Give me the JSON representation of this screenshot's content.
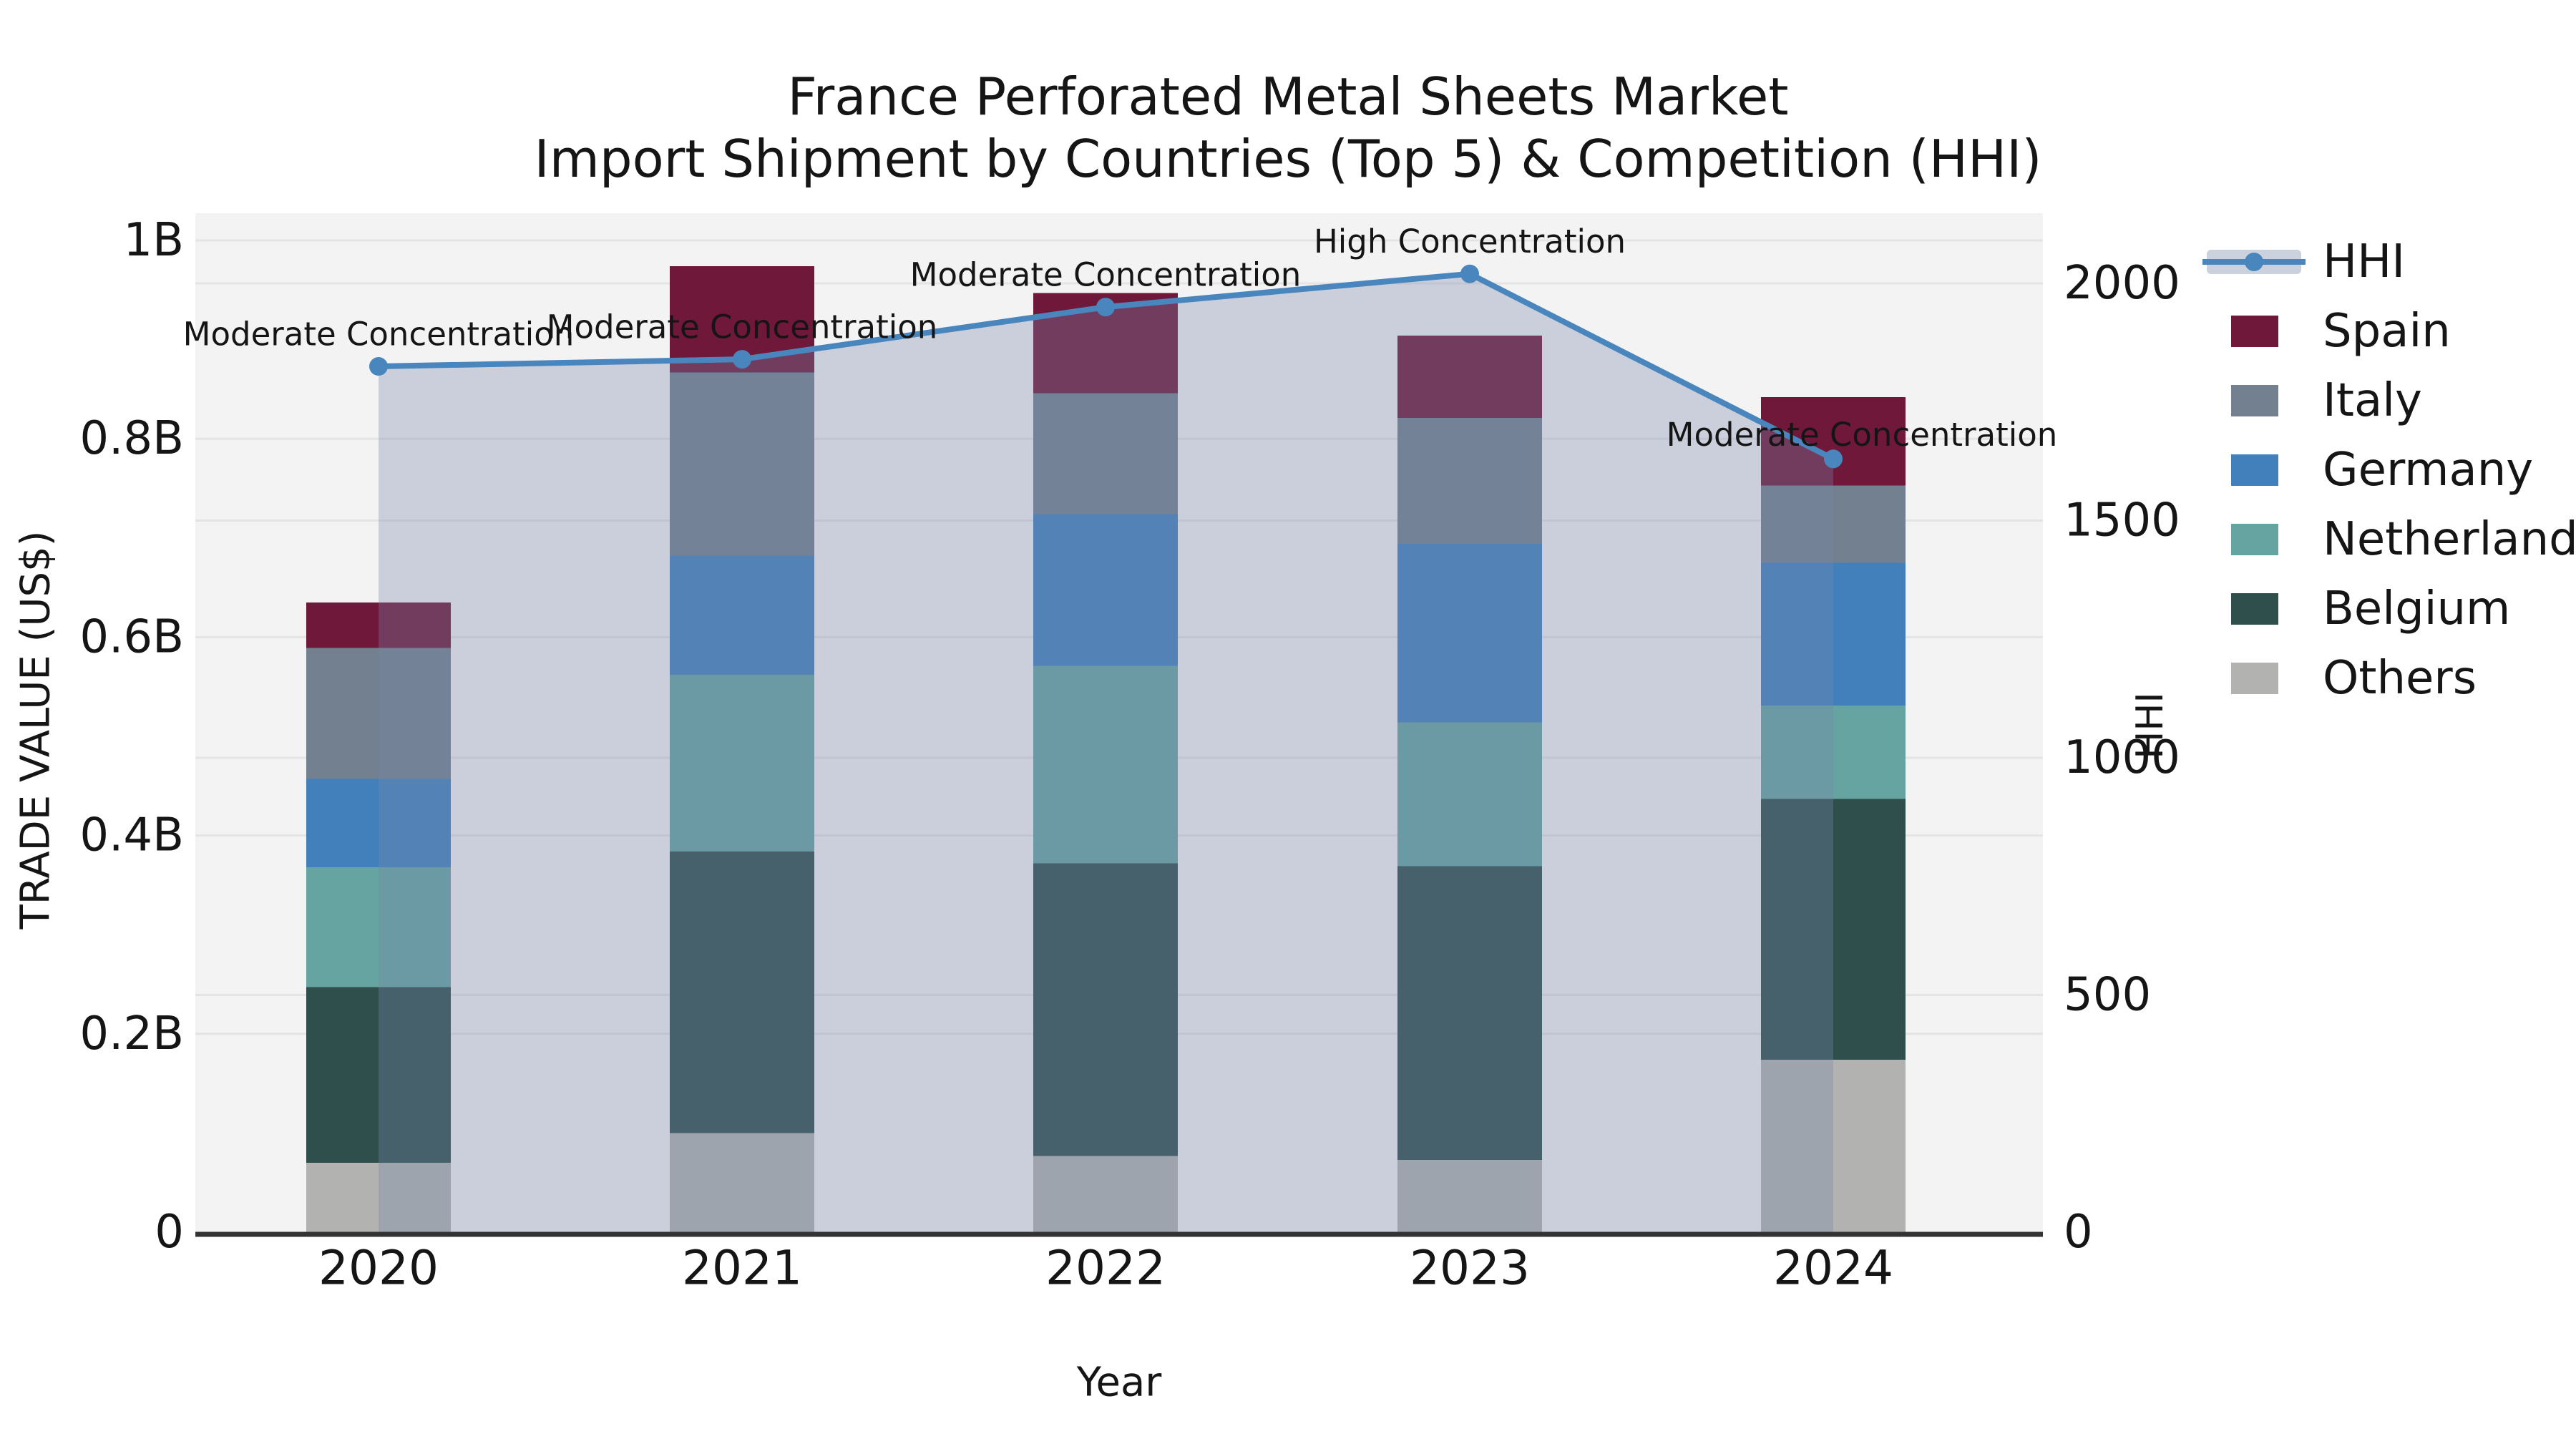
{
  "title": {
    "line1": "France Perforated Metal Sheets Market",
    "line2": "Import Shipment by Countries (Top 5) & Competition (HHI)"
  },
  "axes": {
    "y_left_label": "TRADE VALUE (US$)",
    "y_right_label": "HHI",
    "x_label": "Year",
    "y_left_ticks": {
      "labels": [
        "0",
        "0.2B",
        "0.4B",
        "0.6B",
        "0.8B",
        "1B"
      ],
      "values": [
        0,
        0.2,
        0.4,
        0.6,
        0.8,
        1.0
      ]
    },
    "y_right_ticks": {
      "labels": [
        "0",
        "500",
        "1000",
        "1500",
        "2000"
      ],
      "values": [
        0,
        500,
        1000,
        1500,
        2000
      ]
    }
  },
  "legend": {
    "items": [
      {
        "label": "HHI",
        "type": "line"
      },
      {
        "label": "Spain",
        "type": "patch"
      },
      {
        "label": "Italy",
        "type": "patch"
      },
      {
        "label": "Germany",
        "type": "patch"
      },
      {
        "label": "Netherlands",
        "type": "patch"
      },
      {
        "label": "Belgium",
        "type": "patch"
      },
      {
        "label": "Others",
        "type": "patch"
      }
    ]
  },
  "colors": {
    "HHI": "#4A86BE",
    "Spain": "#6F1839",
    "Italy": "#73808F",
    "Germany": "#4280BC",
    "Netherlands": "#66A4A2",
    "Belgium": "#2F4F4C",
    "Others": "#B2B3B1",
    "area_fill": "rgba(117,135,169,0.33)",
    "legend_band": "#CBD2DD",
    "plot_bg": "#F3F3F3",
    "gridline": "#E4E4E4",
    "axis_line": "#333333",
    "text": "#151515"
  },
  "chart_data": {
    "type": "bar",
    "subtype": "stacked-bars-with-line-overlay-and-area-fill",
    "categories": [
      "2020",
      "2021",
      "2022",
      "2023",
      "2024"
    ],
    "unit_left": "billion US$",
    "unit_right": "HHI index",
    "ylim_left": [
      0,
      1.0
    ],
    "ylim_right": [
      0,
      2000
    ],
    "grid": true,
    "legend_position": "right",
    "series": [
      {
        "name": "Spain",
        "axis": "left",
        "values": [
          0.046,
          0.107,
          0.101,
          0.083,
          0.089
        ]
      },
      {
        "name": "Italy",
        "axis": "left",
        "values": [
          0.132,
          0.185,
          0.122,
          0.127,
          0.078
        ]
      },
      {
        "name": "Germany",
        "axis": "left",
        "values": [
          0.089,
          0.12,
          0.153,
          0.18,
          0.144
        ]
      },
      {
        "name": "Netherlands",
        "axis": "left",
        "values": [
          0.121,
          0.178,
          0.199,
          0.145,
          0.094
        ]
      },
      {
        "name": "Belgium",
        "axis": "left",
        "values": [
          0.177,
          0.284,
          0.295,
          0.296,
          0.263
        ]
      },
      {
        "name": "Others",
        "axis": "left",
        "values": [
          0.07,
          0.1,
          0.077,
          0.073,
          0.174
        ]
      }
    ],
    "stack_order_bottom_to_top": [
      "Others",
      "Belgium",
      "Netherlands",
      "Germany",
      "Italy",
      "Spain"
    ],
    "line_series": {
      "name": "HHI",
      "axis": "right",
      "values": [
        1825,
        1840,
        1950,
        2020,
        1630
      ]
    },
    "bar_totals": [
      0.635,
      0.974,
      0.947,
      0.904,
      0.842
    ],
    "annotations": [
      {
        "category": "2020",
        "text": "Moderate Concentration"
      },
      {
        "category": "2021",
        "text": "Moderate Concentration"
      },
      {
        "category": "2022",
        "text": "Moderate Concentration"
      },
      {
        "category": "2023",
        "text": "High Concentration"
      },
      {
        "category": "2024",
        "text": "Moderate Concentration"
      }
    ]
  }
}
